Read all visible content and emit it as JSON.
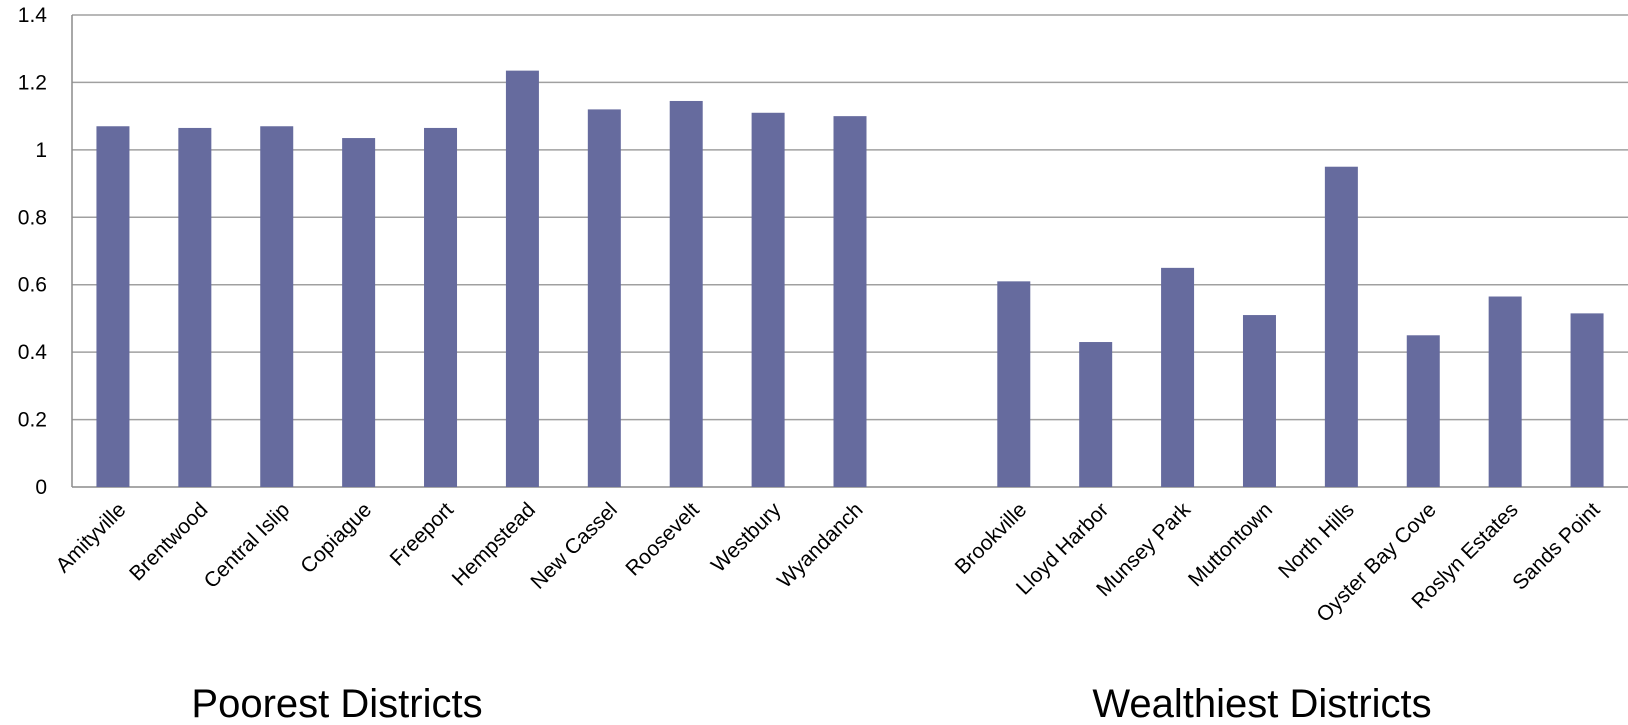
{
  "chart_data": {
    "type": "bar",
    "title": "",
    "xlabel": "",
    "ylabel": "",
    "ylim": [
      0,
      1.4
    ],
    "yticks": [
      "0",
      "0.2",
      "0.4",
      "0.6",
      "0.8",
      "1",
      "1.2",
      "1.4"
    ],
    "grid": true,
    "legend": "none",
    "bar_color": "#666b9e",
    "categories": [
      "Amityville",
      "Brentwood",
      "Central Islip",
      "Copiague",
      "Freeport",
      "Hempstead",
      "New Cassel",
      "Roosevelt",
      "Westbury",
      "Wyandanch",
      "",
      "Brookville",
      "Lloyd Harbor",
      "Munsey Park",
      "Muttontown",
      "North Hills",
      "Oyster Bay Cove",
      "Roslyn Estates",
      "Sands Point"
    ],
    "values": [
      1.07,
      1.065,
      1.07,
      1.035,
      1.065,
      1.235,
      1.12,
      1.145,
      1.11,
      1.1,
      null,
      0.61,
      0.43,
      0.65,
      0.51,
      0.95,
      0.45,
      0.565,
      0.515
    ],
    "group_labels": [
      "Poorest Districts",
      "Wealthiest Districts"
    ]
  }
}
